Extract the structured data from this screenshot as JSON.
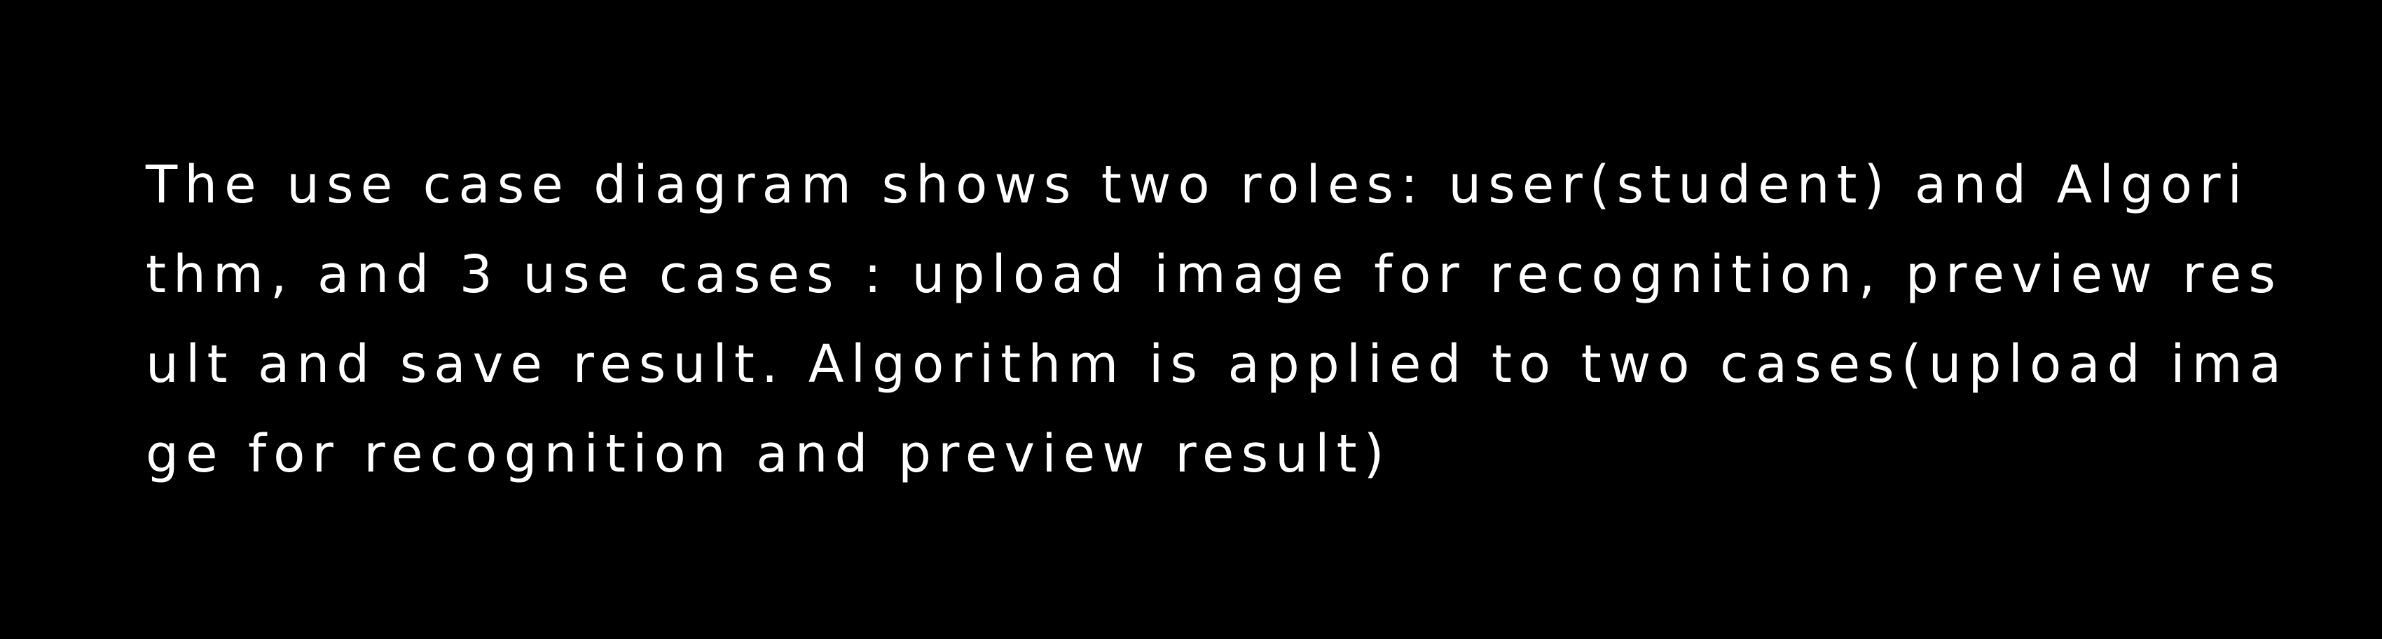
{
  "text": {
    "lines": [
      "The use case diagram shows two roles: user(student) and Algori",
      "thm, and 3 use cases : upload image for recognition, preview res",
      "ult and save result. Algorithm is applied to two cases(upload ima",
      "ge for recognition and preview result)"
    ]
  },
  "colors": {
    "background": "#000000",
    "text": "#ffffff"
  }
}
